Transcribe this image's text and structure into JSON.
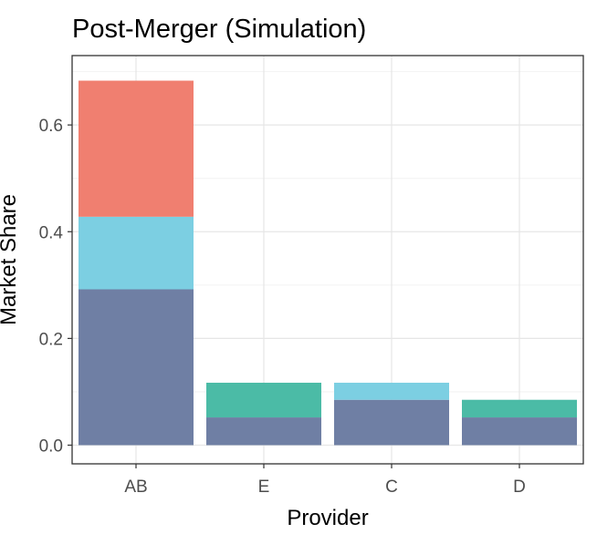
{
  "chart_data": {
    "type": "bar",
    "stacked": true,
    "title": "Post-Merger (Simulation)",
    "xlabel": "Provider",
    "ylabel": "Market Share",
    "categories": [
      "AB",
      "E",
      "C",
      "D"
    ],
    "ylim": [
      -0.035,
      0.73
    ],
    "yticks": [
      0.0,
      0.2,
      0.4,
      0.6
    ],
    "ytick_labels": [
      "0.0",
      "0.2",
      "0.4",
      "0.6"
    ],
    "grid": true,
    "legend": "none",
    "segments": [
      {
        "category": "AB",
        "from": 0.0,
        "to": 0.292,
        "color": "#6f7fa4"
      },
      {
        "category": "AB",
        "from": 0.292,
        "to": 0.428,
        "color": "#7ccfe2"
      },
      {
        "category": "AB",
        "from": 0.428,
        "to": 0.683,
        "color": "#f07f70"
      },
      {
        "category": "E",
        "from": 0.0,
        "to": 0.052,
        "color": "#6f7fa4"
      },
      {
        "category": "E",
        "from": 0.052,
        "to": 0.117,
        "color": "#4bbba6"
      },
      {
        "category": "C",
        "from": 0.0,
        "to": 0.085,
        "color": "#6f7fa4"
      },
      {
        "category": "C",
        "from": 0.085,
        "to": 0.117,
        "color": "#7ccfe2"
      },
      {
        "category": "D",
        "from": 0.0,
        "to": 0.052,
        "color": "#6f7fa4"
      },
      {
        "category": "D",
        "from": 0.052,
        "to": 0.085,
        "color": "#4bbba6"
      }
    ]
  }
}
